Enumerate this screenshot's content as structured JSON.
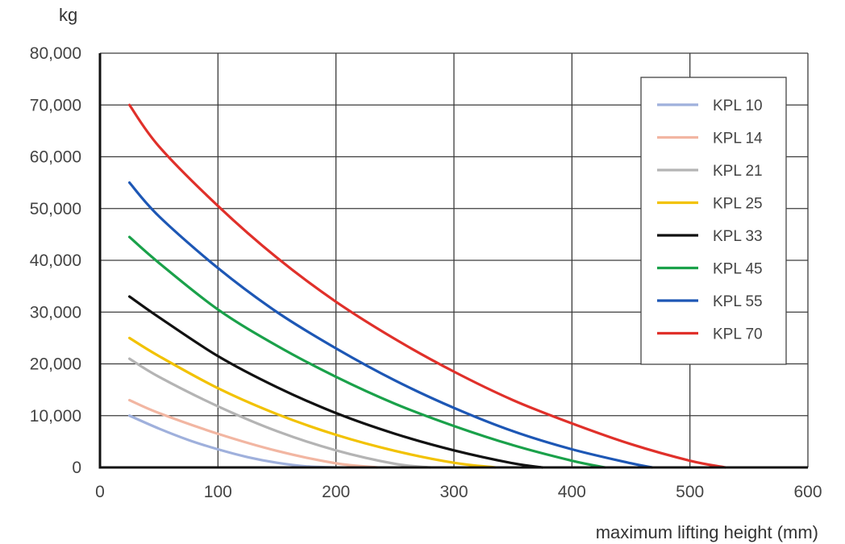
{
  "chart_data": {
    "type": "line",
    "title": "",
    "xlabel": "maximum lifting height (mm)",
    "ylabel": "kg",
    "xlim": [
      0,
      600
    ],
    "ylim": [
      0,
      80000
    ],
    "xticks": [
      0,
      100,
      200,
      300,
      400,
      500,
      600
    ],
    "xtick_labels": [
      "0",
      "100",
      "200",
      "300",
      "400",
      "500",
      "600"
    ],
    "yticks": [
      0,
      10000,
      20000,
      30000,
      40000,
      50000,
      60000,
      70000,
      80000
    ],
    "ytick_labels": [
      "0",
      "10,000",
      "20,000",
      "30,000",
      "40,000",
      "50,000",
      "60,000",
      "70,000",
      "80,000"
    ],
    "grid": true,
    "legend_position": "top-right",
    "series": [
      {
        "name": "KPL 10",
        "color": "#9fb0dc",
        "x": [
          25,
          50,
          75,
          100,
          125,
          150,
          175,
          200
        ],
        "y": [
          10000,
          7500,
          5300,
          3500,
          2000,
          900,
          200,
          0
        ]
      },
      {
        "name": "KPL 14",
        "color": "#f2b6a2",
        "x": [
          25,
          50,
          100,
          150,
          200,
          235
        ],
        "y": [
          13000,
          10500,
          6500,
          3200,
          800,
          0
        ]
      },
      {
        "name": "KPL 21",
        "color": "#b4b4b4",
        "x": [
          25,
          50,
          100,
          150,
          200,
          250,
          280
        ],
        "y": [
          21000,
          17500,
          11800,
          7000,
          3300,
          700,
          0
        ]
      },
      {
        "name": "KPL 25",
        "color": "#f2c200",
        "x": [
          25,
          50,
          100,
          150,
          200,
          250,
          300,
          335
        ],
        "y": [
          25000,
          21500,
          15300,
          10300,
          6300,
          3200,
          900,
          0
        ]
      },
      {
        "name": "KPL 33",
        "color": "#111111",
        "x": [
          25,
          50,
          100,
          150,
          200,
          250,
          300,
          350,
          375
        ],
        "y": [
          33000,
          29000,
          21500,
          15500,
          10500,
          6500,
          3300,
          800,
          0
        ]
      },
      {
        "name": "KPL 45",
        "color": "#1aa14a",
        "x": [
          25,
          50,
          100,
          150,
          200,
          250,
          300,
          350,
          400,
          428
        ],
        "y": [
          44500,
          39500,
          30500,
          23500,
          17500,
          12300,
          8000,
          4300,
          1300,
          0
        ]
      },
      {
        "name": "KPL 55",
        "color": "#1d57b5",
        "x": [
          25,
          50,
          100,
          150,
          200,
          250,
          300,
          350,
          400,
          450,
          468
        ],
        "y": [
          55000,
          48500,
          38500,
          30000,
          23000,
          16800,
          11500,
          7000,
          3500,
          800,
          0
        ]
      },
      {
        "name": "KPL 70",
        "color": "#e0302a",
        "x": [
          25,
          50,
          100,
          150,
          200,
          250,
          300,
          350,
          400,
          450,
          500,
          530
        ],
        "y": [
          70000,
          62000,
          50500,
          40500,
          32000,
          24800,
          18500,
          13000,
          8500,
          4500,
          1300,
          0
        ]
      }
    ]
  }
}
